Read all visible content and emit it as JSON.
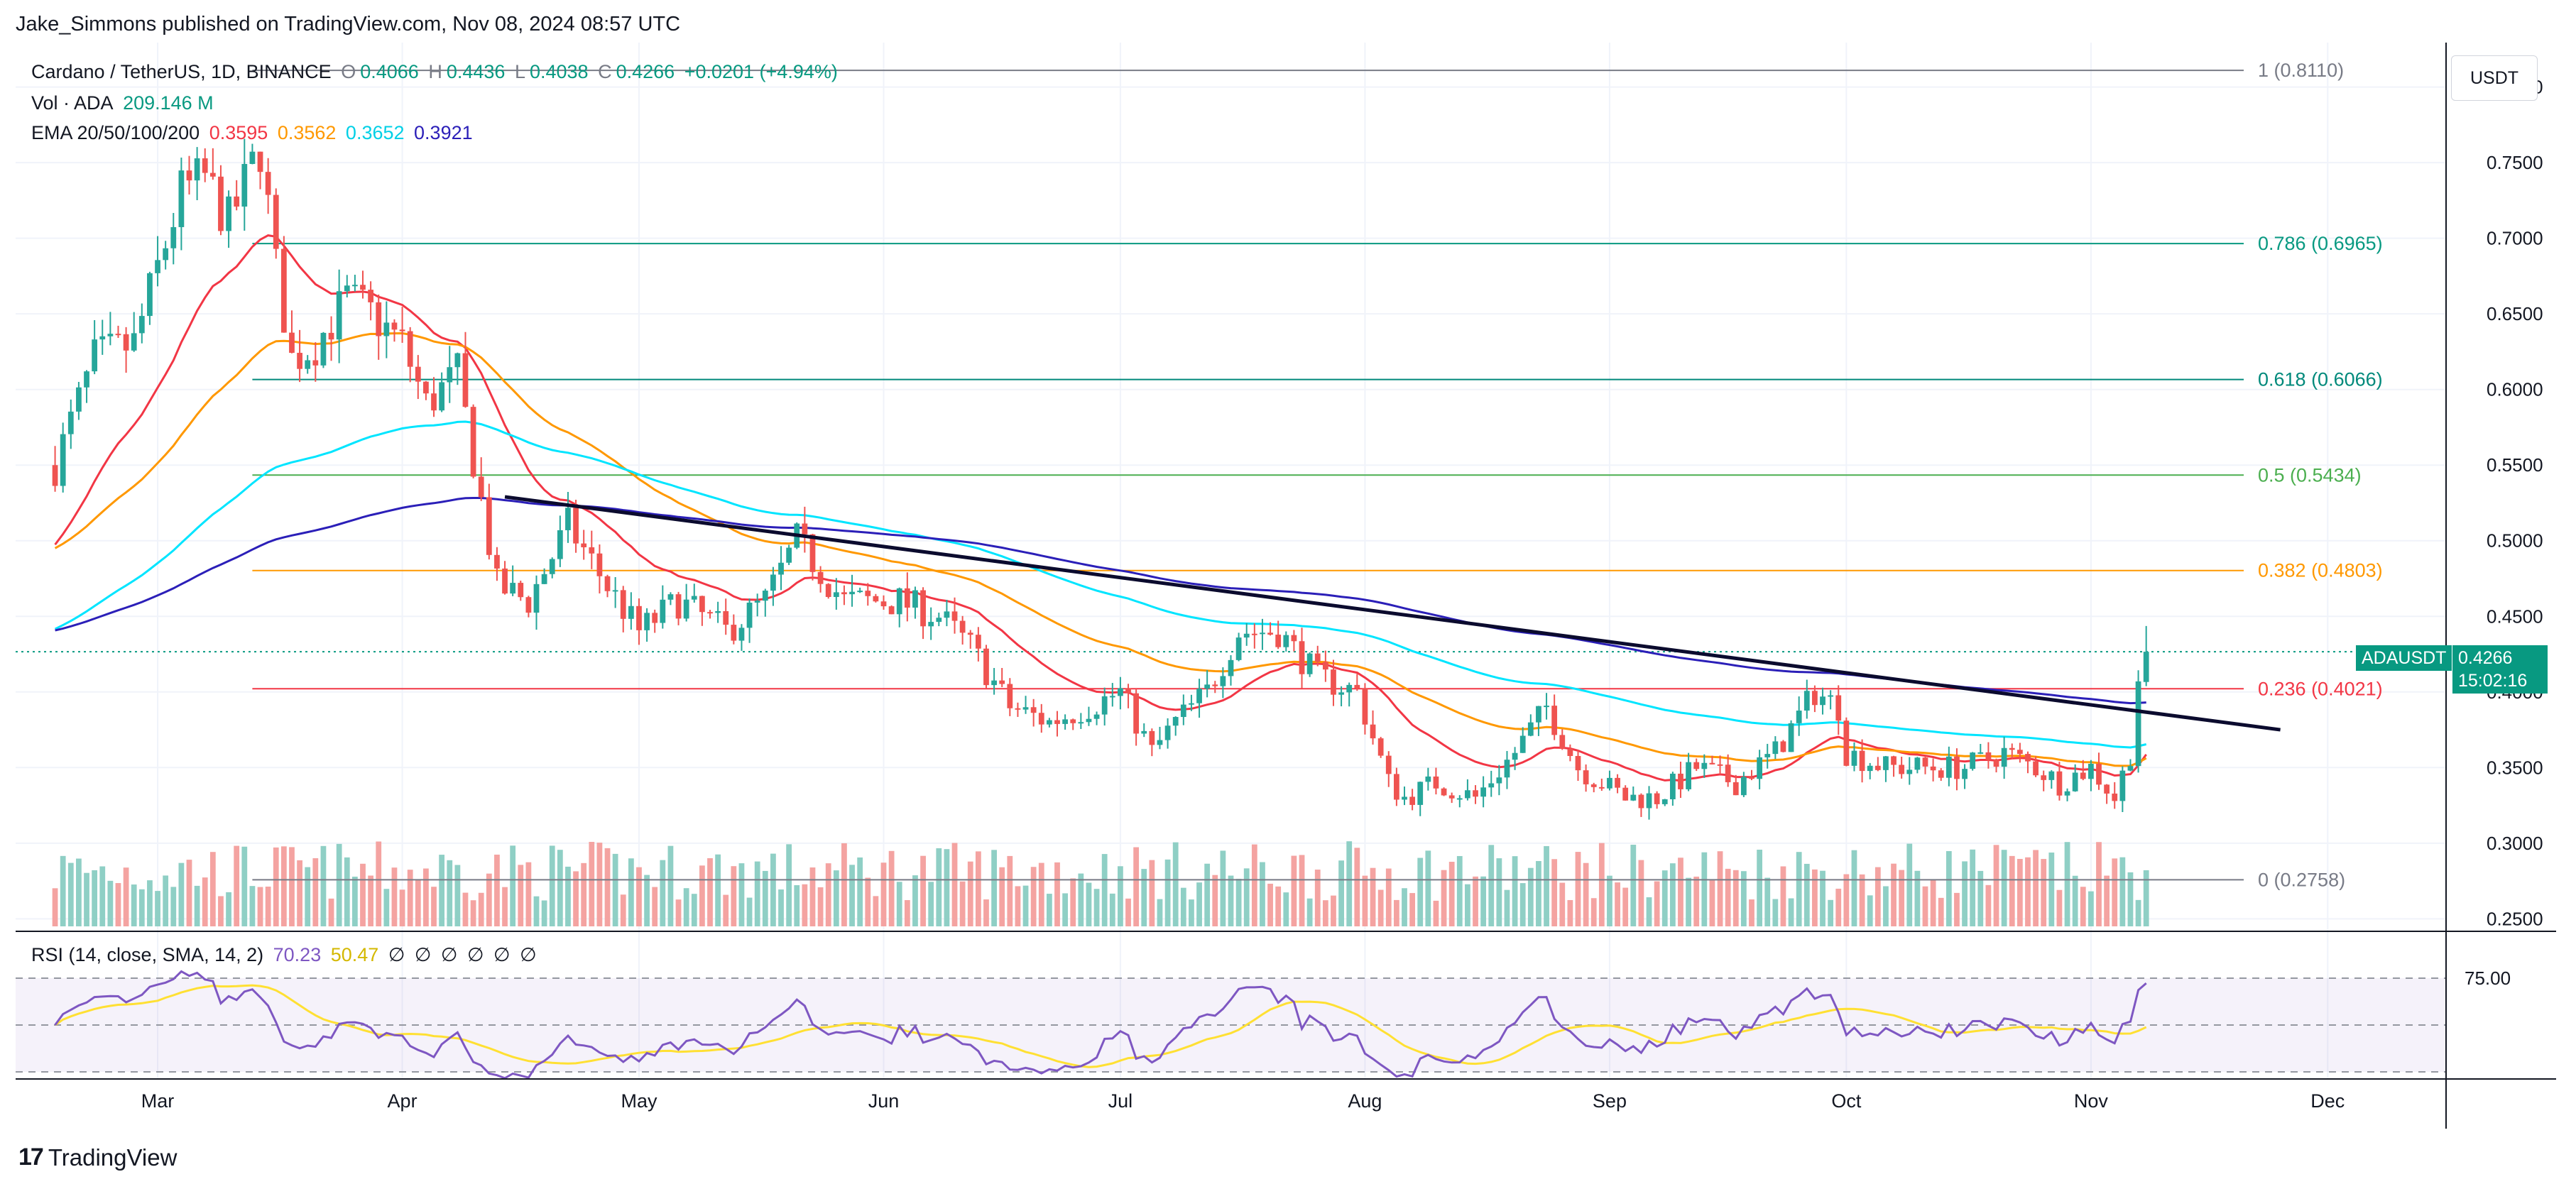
{
  "header": {
    "published": "Jake_Simmons published on TradingView.com, Nov 08, 2024 08:57 UTC"
  },
  "legend": {
    "symbol": "Cardano / TetherUS, 1D, BINANCE",
    "o_label": "O",
    "o": "0.4066",
    "h_label": "H",
    "h": "0.4436",
    "l_label": "L",
    "l": "0.4038",
    "c_label": "C",
    "c": "0.4266",
    "change": "+0.0201 (+4.94%)",
    "vol_label": "Vol · ADA",
    "vol": "209.146 M",
    "ema_label": "EMA 20/50/100/200",
    "ema20": "0.3595",
    "ema50": "0.3562",
    "ema100": "0.3652",
    "ema200": "0.3921",
    "rsi_label": "RSI (14, close, SMA, 14, 2)",
    "rsi": "70.23",
    "rsi_sma": "50.47",
    "rsi_nulls": [
      "∅",
      "∅",
      "∅",
      "∅",
      "∅",
      "∅"
    ]
  },
  "toolbar": {
    "currency": "USDT"
  },
  "price_tag": {
    "symbol": "ADAUSDT",
    "price": "0.4266",
    "countdown": "15:02:16"
  },
  "branding": {
    "name": "TradingView"
  },
  "colors": {
    "up": "#26a69a",
    "down": "#ef5350",
    "vol_up": "#8fcfc5",
    "vol_down": "#f4a3a1",
    "ema20": "#f23645",
    "ema50": "#ff9800",
    "ema100": "#00e5ff",
    "ema200": "#2b1fb8",
    "rsi": "#7e57c2",
    "rsi_sma": "#ffe033",
    "trendline": "#0b0b2e"
  },
  "chart_data": {
    "type": "candlestick",
    "symbol": "ADAUSDT",
    "y_ticks": [
      "0.8000",
      "0.7500",
      "0.7000",
      "0.6500",
      "0.6000",
      "0.5500",
      "0.5000",
      "0.4500",
      "0.4000",
      "0.3500",
      "0.3000",
      "0.2500"
    ],
    "x_ticks": [
      "Mar",
      "Apr",
      "May",
      "Jun",
      "Jul",
      "Aug",
      "Sep",
      "Oct",
      "Nov",
      "Dec"
    ],
    "ylim": [
      0.245,
      0.82
    ],
    "fib_levels": [
      {
        "label": "1 (0.8110)",
        "value": 0.811,
        "color": "#787b86"
      },
      {
        "label": "0.786 (0.6965)",
        "value": 0.6965,
        "color": "#089981"
      },
      {
        "label": "0.618 (0.6066)",
        "value": 0.6066,
        "color": "#00897b"
      },
      {
        "label": "0.5 (0.5434)",
        "value": 0.5434,
        "color": "#4caf50"
      },
      {
        "label": "0.382 (0.4803)",
        "value": 0.4803,
        "color": "#ff9800"
      },
      {
        "label": "0.236 (0.4021)",
        "value": 0.4021,
        "color": "#f23645"
      },
      {
        "label": "0 (0.2758)",
        "value": 0.2758,
        "color": "#787b86"
      }
    ],
    "trendline": {
      "start": [
        "2024-04-14",
        0.529
      ],
      "end": [
        "2024-11-25",
        0.375
      ]
    },
    "current_price": 0.4266,
    "rsi_level": "75.00",
    "series_close": [
      [
        "2024-02-17",
        0.55
      ],
      [
        "2024-02-22",
        0.62
      ],
      [
        "2024-02-27",
        0.63
      ],
      [
        "2024-03-01",
        0.68
      ],
      [
        "2024-03-04",
        0.73
      ],
      [
        "2024-03-07",
        0.74
      ],
      [
        "2024-03-10",
        0.71
      ],
      [
        "2024-03-14",
        0.76
      ],
      [
        "2024-03-16",
        0.68
      ],
      [
        "2024-03-18",
        0.62
      ],
      [
        "2024-03-21",
        0.63
      ],
      [
        "2024-03-25",
        0.66
      ],
      [
        "2024-03-28",
        0.65
      ],
      [
        "2024-04-01",
        0.63
      ],
      [
        "2024-04-04",
        0.59
      ],
      [
        "2024-04-08",
        0.61
      ],
      [
        "2024-04-13",
        0.47
      ],
      [
        "2024-04-17",
        0.46
      ],
      [
        "2024-04-22",
        0.51
      ],
      [
        "2024-04-27",
        0.47
      ],
      [
        "2024-05-01",
        0.44
      ],
      [
        "2024-05-06",
        0.46
      ],
      [
        "2024-05-12",
        0.44
      ],
      [
        "2024-05-17",
        0.46
      ],
      [
        "2024-05-21",
        0.5
      ],
      [
        "2024-05-27",
        0.46
      ],
      [
        "2024-06-03",
        0.46
      ],
      [
        "2024-06-08",
        0.45
      ],
      [
        "2024-06-12",
        0.43
      ],
      [
        "2024-06-17",
        0.39
      ],
      [
        "2024-06-22",
        0.38
      ],
      [
        "2024-06-27",
        0.39
      ],
      [
        "2024-07-01",
        0.4
      ],
      [
        "2024-07-05",
        0.36
      ],
      [
        "2024-07-08",
        0.38
      ],
      [
        "2024-07-12",
        0.4
      ],
      [
        "2024-07-16",
        0.44
      ],
      [
        "2024-07-21",
        0.44
      ],
      [
        "2024-07-26",
        0.41
      ],
      [
        "2024-07-31",
        0.4
      ],
      [
        "2024-08-04",
        0.34
      ],
      [
        "2024-08-06",
        0.33
      ],
      [
        "2024-08-10",
        0.34
      ],
      [
        "2024-08-15",
        0.33
      ],
      [
        "2024-08-20",
        0.36
      ],
      [
        "2024-08-24",
        0.39
      ],
      [
        "2024-08-28",
        0.35
      ],
      [
        "2024-09-03",
        0.33
      ],
      [
        "2024-09-07",
        0.33
      ],
      [
        "2024-09-12",
        0.35
      ],
      [
        "2024-09-17",
        0.34
      ],
      [
        "2024-09-22",
        0.36
      ],
      [
        "2024-09-27",
        0.4
      ],
      [
        "2024-09-30",
        0.39
      ],
      [
        "2024-10-01",
        0.36
      ],
      [
        "2024-10-06",
        0.35
      ],
      [
        "2024-10-11",
        0.35
      ],
      [
        "2024-10-16",
        0.35
      ],
      [
        "2024-10-21",
        0.36
      ],
      [
        "2024-10-25",
        0.35
      ],
      [
        "2024-10-28",
        0.34
      ],
      [
        "2024-11-01",
        0.35
      ],
      [
        "2024-11-04",
        0.33
      ],
      [
        "2024-11-06",
        0.36
      ],
      [
        "2024-11-07",
        0.41
      ],
      [
        "2024-11-08",
        0.4266
      ]
    ]
  }
}
